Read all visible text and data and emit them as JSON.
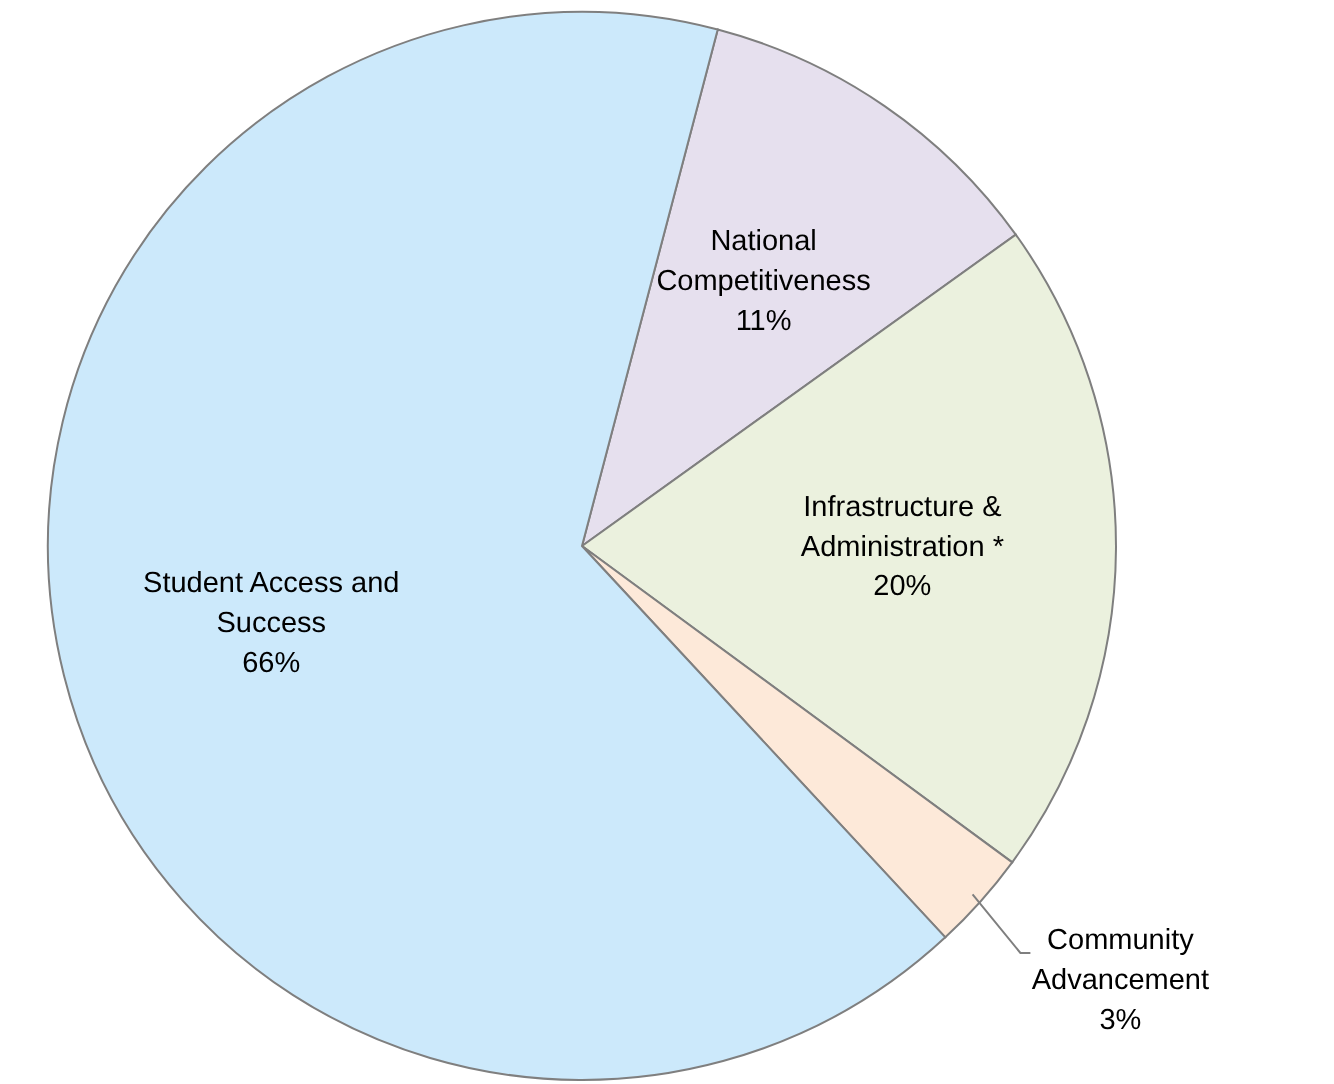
{
  "chart_data": {
    "type": "pie",
    "categories": [
      "National Competitiveness",
      "Infrastructure & Administration *",
      "Community Advancement",
      "Student Access and Success"
    ],
    "values": [
      11,
      20,
      3,
      66
    ],
    "value_labels": [
      "11%",
      "20%",
      "3%",
      "66%"
    ],
    "colors": [
      "#e6e0ee",
      "#ebf1de",
      "#fde9d9",
      "#cce9fb"
    ]
  }
}
